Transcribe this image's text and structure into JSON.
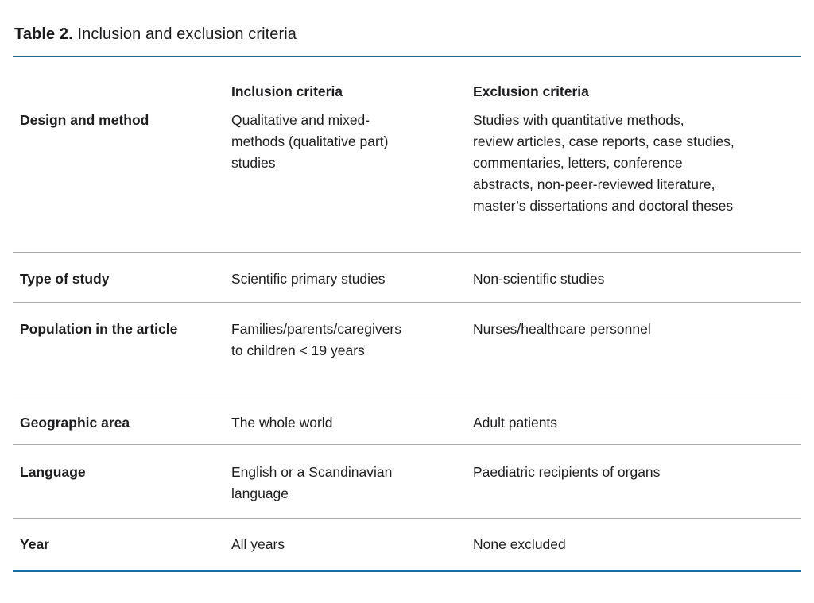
{
  "caption": {
    "label": "Table 2.",
    "text": "Inclusion and exclusion criteria"
  },
  "table": {
    "accent_line_color": "#1a6a9b",
    "divider_color": "#ababab",
    "text_color": "#1d1d1f",
    "columns": {
      "row_header": "",
      "inclusion": "Inclusion criteria",
      "exclusion": "Exclusion criteria"
    },
    "rows": [
      {
        "label": "Design and method",
        "inclusion": "Qualitative and mixed-\nmethods (qualitative part)\nstudies",
        "exclusion": "Studies with quantitative methods,\nreview articles, case reports, case studies,\ncommentaries, letters, conference\nabstracts, non-peer-reviewed literature,\nmaster’s dissertations and doctoral theses"
      },
      {
        "label": "Type of study",
        "inclusion": "Scientific primary studies",
        "exclusion": "Non-scientific studies"
      },
      {
        "label": "Population in the article",
        "inclusion": "Families/parents/caregivers\nto children < 19 years",
        "exclusion": "Nurses/healthcare personnel"
      },
      {
        "label": "Geographic area",
        "inclusion": "The whole world",
        "exclusion": "Adult patients"
      },
      {
        "label": "Language",
        "inclusion": "English or a Scandinavian\nlanguage",
        "exclusion": "Paediatric recipients of organs"
      },
      {
        "label": "Year",
        "inclusion": "All years",
        "exclusion": "None excluded"
      }
    ]
  }
}
